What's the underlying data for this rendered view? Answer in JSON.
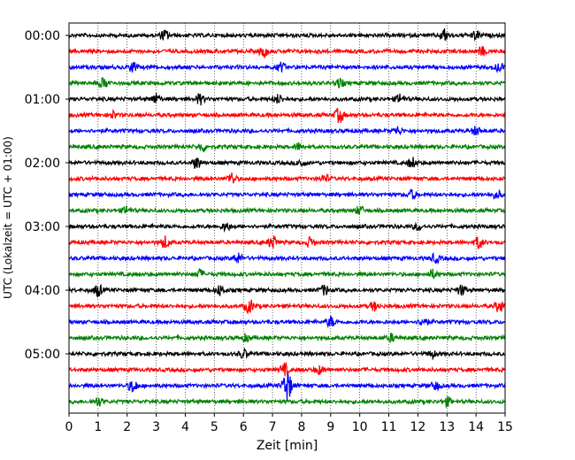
{
  "chart_data": {
    "type": "line",
    "title": "",
    "xlabel": "Zeit  [min]",
    "ylabel": "UTC (Lokalzeit = UTC + 01:00)",
    "xlim": [
      0,
      15
    ],
    "x_ticks": [
      "0",
      "1",
      "2",
      "3",
      "4",
      "5",
      "6",
      "7",
      "8",
      "9",
      "10",
      "11",
      "12",
      "13",
      "14",
      "15"
    ],
    "y_ticks": [
      "00:00",
      "01:00",
      "02:00",
      "03:00",
      "04:00",
      "05:00"
    ],
    "traces_per_hour": 4,
    "trace_minutes": 15,
    "grid": "vertical dotted at each minute",
    "legend": "none",
    "colors": [
      "#000000",
      "#ff0000",
      "#0000ff",
      "#008000"
    ],
    "series": [
      {
        "start": "00:00",
        "color": "#000000",
        "events": [
          {
            "t": 3.3,
            "amp": 0.6
          },
          {
            "t": 12.9,
            "amp": 0.7
          },
          {
            "t": 14.0,
            "amp": 0.5
          }
        ]
      },
      {
        "start": "00:15",
        "color": "#ff0000",
        "events": [
          {
            "t": 6.7,
            "amp": 0.6
          },
          {
            "t": 14.2,
            "amp": 0.5
          }
        ]
      },
      {
        "start": "00:30",
        "color": "#0000ff",
        "events": [
          {
            "t": 2.2,
            "amp": 0.6
          },
          {
            "t": 7.3,
            "amp": 0.5
          },
          {
            "t": 14.8,
            "amp": 0.5
          }
        ]
      },
      {
        "start": "00:45",
        "color": "#008000",
        "events": [
          {
            "t": 1.2,
            "amp": 0.6
          },
          {
            "t": 9.3,
            "amp": 0.5
          }
        ]
      },
      {
        "start": "01:00",
        "color": "#000000",
        "events": [
          {
            "t": 3.0,
            "amp": 0.6
          },
          {
            "t": 4.5,
            "amp": 0.6
          },
          {
            "t": 7.2,
            "amp": 0.5
          },
          {
            "t": 11.4,
            "amp": 0.6
          }
        ]
      },
      {
        "start": "01:15",
        "color": "#ff0000",
        "events": [
          {
            "t": 9.3,
            "amp": 0.9
          },
          {
            "t": 1.5,
            "amp": 0.4
          }
        ]
      },
      {
        "start": "01:30",
        "color": "#0000ff",
        "events": [
          {
            "t": 14.0,
            "amp": 0.5
          },
          {
            "t": 11.3,
            "amp": 0.4
          }
        ]
      },
      {
        "start": "01:45",
        "color": "#008000",
        "events": [
          {
            "t": 4.6,
            "amp": 0.5
          },
          {
            "t": 7.9,
            "amp": 0.4
          }
        ]
      },
      {
        "start": "02:00",
        "color": "#000000",
        "events": [
          {
            "t": 4.4,
            "amp": 0.7
          },
          {
            "t": 11.8,
            "amp": 0.6
          },
          {
            "t": 8.0,
            "amp": 0.4
          }
        ]
      },
      {
        "start": "02:15",
        "color": "#ff0000",
        "events": [
          {
            "t": 5.6,
            "amp": 0.7
          },
          {
            "t": 8.8,
            "amp": 0.4
          }
        ]
      },
      {
        "start": "02:30",
        "color": "#0000ff",
        "events": [
          {
            "t": 11.8,
            "amp": 0.5
          },
          {
            "t": 14.7,
            "amp": 0.5
          }
        ]
      },
      {
        "start": "02:45",
        "color": "#008000",
        "events": [
          {
            "t": 2.0,
            "amp": 0.5
          },
          {
            "t": 10.0,
            "amp": 0.5
          }
        ]
      },
      {
        "start": "03:00",
        "color": "#000000",
        "events": [
          {
            "t": 5.4,
            "amp": 0.5
          },
          {
            "t": 12.0,
            "amp": 0.4
          }
        ]
      },
      {
        "start": "03:15",
        "color": "#ff0000",
        "events": [
          {
            "t": 3.3,
            "amp": 0.7
          },
          {
            "t": 7.0,
            "amp": 0.8
          },
          {
            "t": 8.3,
            "amp": 0.6
          },
          {
            "t": 14.1,
            "amp": 0.7
          }
        ]
      },
      {
        "start": "03:30",
        "color": "#0000ff",
        "events": [
          {
            "t": 5.8,
            "amp": 0.6
          },
          {
            "t": 12.6,
            "amp": 0.5
          }
        ]
      },
      {
        "start": "03:45",
        "color": "#008000",
        "events": [
          {
            "t": 4.5,
            "amp": 0.5
          },
          {
            "t": 12.5,
            "amp": 0.5
          }
        ]
      },
      {
        "start": "04:00",
        "color": "#000000",
        "events": [
          {
            "t": 1.0,
            "amp": 0.7
          },
          {
            "t": 5.2,
            "amp": 0.6
          },
          {
            "t": 8.8,
            "amp": 0.6
          },
          {
            "t": 13.5,
            "amp": 0.6
          }
        ]
      },
      {
        "start": "04:15",
        "color": "#ff0000",
        "events": [
          {
            "t": 6.2,
            "amp": 0.8
          },
          {
            "t": 14.8,
            "amp": 0.7
          },
          {
            "t": 10.5,
            "amp": 0.5
          }
        ]
      },
      {
        "start": "04:30",
        "color": "#0000ff",
        "events": [
          {
            "t": 9.0,
            "amp": 0.6
          },
          {
            "t": 12.2,
            "amp": 0.6
          }
        ]
      },
      {
        "start": "04:45",
        "color": "#008000",
        "events": [
          {
            "t": 11.1,
            "amp": 0.4
          },
          {
            "t": 6.1,
            "amp": 0.4
          }
        ]
      },
      {
        "start": "05:00",
        "color": "#000000",
        "events": [
          {
            "t": 6.0,
            "amp": 0.5
          },
          {
            "t": 12.5,
            "amp": 0.4
          }
        ]
      },
      {
        "start": "05:15",
        "color": "#ff0000",
        "events": [
          {
            "t": 7.4,
            "amp": 0.7
          },
          {
            "t": 8.6,
            "amp": 0.5
          }
        ]
      },
      {
        "start": "05:30",
        "color": "#0000ff",
        "events": [
          {
            "t": 2.2,
            "amp": 0.8
          },
          {
            "t": 7.5,
            "amp": 2.0
          },
          {
            "t": 12.6,
            "amp": 0.5
          }
        ]
      },
      {
        "start": "05:45",
        "color": "#008000",
        "events": [
          {
            "t": 1.0,
            "amp": 0.5
          },
          {
            "t": 13.0,
            "amp": 0.5
          }
        ]
      }
    ]
  }
}
